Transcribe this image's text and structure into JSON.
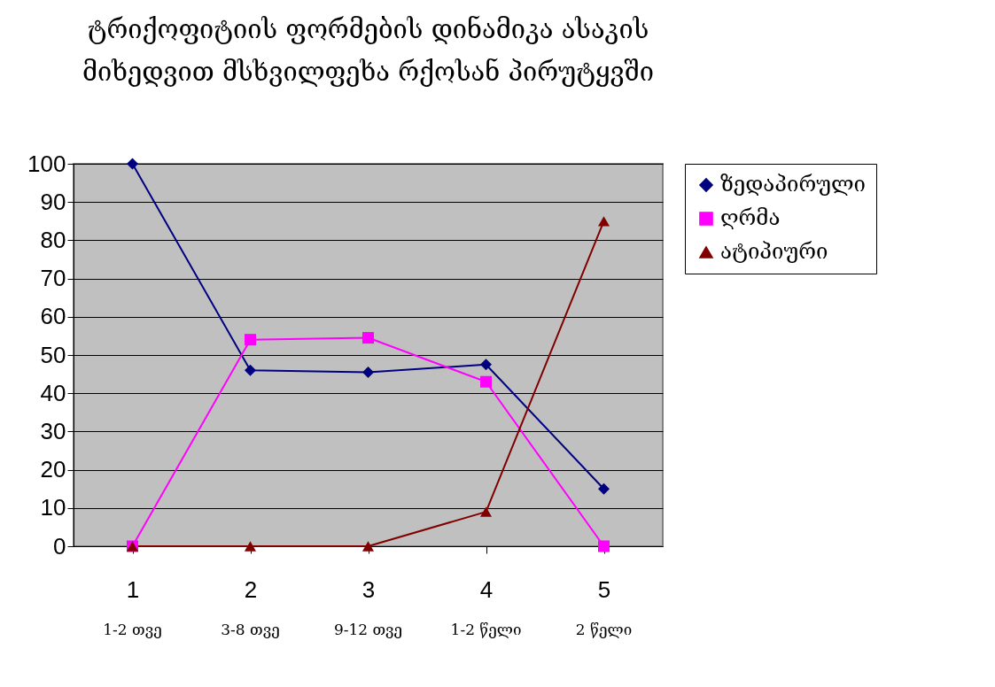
{
  "chart_data": {
    "type": "line",
    "title": "ტრიქოფიტიის ფორმების დინამიკა ასაკის მიხედვით მსხვილფეხა რქოსან პირუტყვში",
    "categories": [
      "1",
      "2",
      "3",
      "4",
      "5"
    ],
    "annotations": [
      "1-2  თვე",
      "3-8  თვე",
      "9-12  თვე",
      "1-2  წელი",
      "2  წელი"
    ],
    "series": [
      {
        "name": "ზედაპირული",
        "color": "#000080",
        "marker": "diamond",
        "values": [
          100,
          46,
          45.5,
          47.5,
          15
        ]
      },
      {
        "name": "ღრმა",
        "color": "#ff00ff",
        "marker": "square",
        "values": [
          0,
          54,
          54.5,
          43,
          0
        ]
      },
      {
        "name": "ატიპიური",
        "color": "#800000",
        "marker": "triangle",
        "values": [
          0,
          0,
          0,
          9,
          85
        ]
      }
    ],
    "ylim": [
      0,
      100
    ],
    "yticks": [
      0,
      10,
      20,
      30,
      40,
      50,
      60,
      70,
      80,
      90,
      100
    ],
    "grid": "y",
    "legend": "right"
  }
}
